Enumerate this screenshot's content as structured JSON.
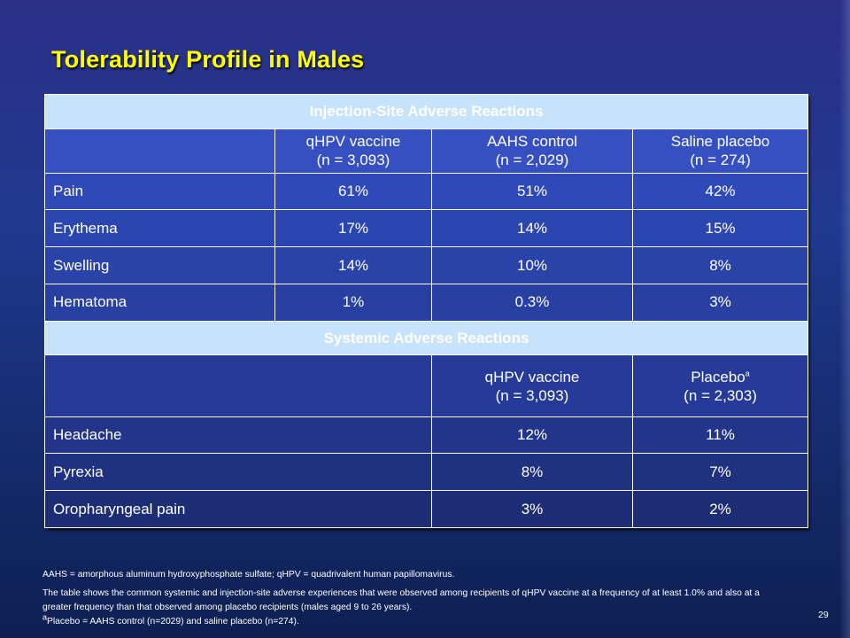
{
  "title": "Tolerability Profile in Males",
  "injection": {
    "section_title": "Injection-Site Adverse Reactions",
    "columns": [
      {
        "name": "qHPV vaccine",
        "n": "(n = 3,093)"
      },
      {
        "name": "AAHS control",
        "n": "(n = 2,029)"
      },
      {
        "name": "Saline placebo",
        "n": "(n = 274)"
      }
    ],
    "rows": [
      {
        "label": "Pain",
        "values": [
          "61%",
          "51%",
          "42%"
        ]
      },
      {
        "label": "Erythema",
        "values": [
          "17%",
          "14%",
          "15%"
        ]
      },
      {
        "label": "Swelling",
        "values": [
          "14%",
          "10%",
          "8%"
        ]
      },
      {
        "label": "Hematoma",
        "values": [
          "1%",
          "0.3%",
          "3%"
        ]
      }
    ]
  },
  "systemic": {
    "section_title": "Systemic Adverse Reactions",
    "columns": [
      {
        "name": "qHPV vaccine",
        "n": "(n = 3,093)"
      },
      {
        "name": "Placebo",
        "sup": "a",
        "n": "(n = 2,303)"
      }
    ],
    "rows": [
      {
        "label": "Headache",
        "values": [
          "12%",
          "11%"
        ]
      },
      {
        "label": "Pyrexia",
        "values": [
          "8%",
          "7%"
        ]
      },
      {
        "label": "Oropharyngeal pain",
        "values": [
          "3%",
          "2%"
        ]
      }
    ]
  },
  "footnotes": {
    "abbrev": "AAHS = amorphous aluminum hydroxyphosphate sulfate; qHPV = quadrivalent human papillomavirus.",
    "description_line1": "The table shows the common systemic and injection-site adverse experiences that were observed among recipients of qHPV vaccine at a frequency of at least 1.0% and also at a",
    "description_line2": "greater frequency than that observed among placebo recipients (males aged 9 to 26 years).",
    "note_marker": "a",
    "note_text": "Placebo = AAHS control (n=2029) and saline placebo (n=274)."
  },
  "page_number": "29"
}
